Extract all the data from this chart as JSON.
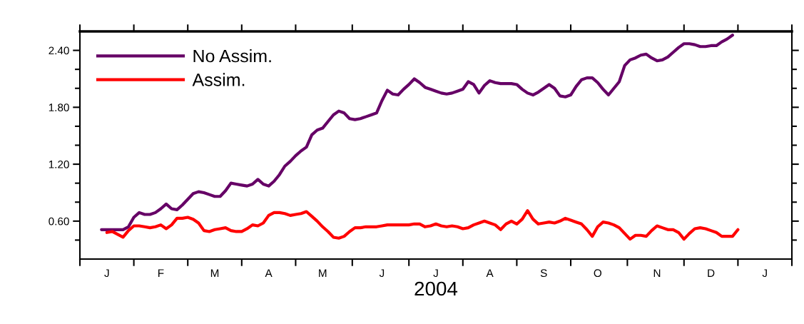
{
  "chart_data": {
    "type": "line",
    "xlabel": "2004",
    "categories": [
      null,
      null,
      null,
      null,
      null,
      "J",
      null,
      null,
      null,
      null,
      null,
      null,
      null,
      null,
      null,
      "F",
      null,
      null,
      null,
      null,
      null,
      null,
      null,
      null,
      null,
      "M",
      null,
      null,
      null,
      null,
      null,
      null,
      null,
      null,
      null,
      "A",
      null,
      null,
      null,
      null,
      null,
      null,
      null,
      null,
      null,
      "M",
      null,
      null,
      null,
      null,
      null,
      null,
      null,
      null,
      null,
      null,
      "J",
      null,
      null,
      null,
      null,
      null,
      null,
      null,
      null,
      null,
      "J",
      null,
      null,
      null,
      null,
      null,
      null,
      null,
      null,
      null,
      "A",
      null,
      null,
      null,
      null,
      null,
      null,
      null,
      null,
      null,
      "S",
      null,
      null,
      null,
      null,
      null,
      null,
      null,
      null,
      null,
      "O",
      null,
      null,
      null,
      null,
      null,
      null,
      null,
      null,
      null,
      null,
      "N",
      null,
      null,
      null,
      null,
      null,
      null,
      null,
      null,
      null,
      "D",
      null,
      null,
      null,
      null,
      null,
      null,
      null,
      null,
      null,
      "J",
      null,
      null,
      null,
      null,
      null
    ],
    "ylim": [
      0.2,
      2.6
    ],
    "yticks": [
      {
        "value": 0.4,
        "label": null
      },
      {
        "value": 0.6,
        "label": "0.60"
      },
      {
        "value": 0.8,
        "label": null
      },
      {
        "value": 1.0,
        "label": null
      },
      {
        "value": 1.2,
        "label": "1.20"
      },
      {
        "value": 1.4,
        "label": null
      },
      {
        "value": 1.6,
        "label": null
      },
      {
        "value": 1.8,
        "label": "1.80"
      },
      {
        "value": 2.0,
        "label": null
      },
      {
        "value": 2.2,
        "label": null
      },
      {
        "value": 2.4,
        "label": "2.40"
      }
    ],
    "grid": false,
    "legend": "top left",
    "marker": "none",
    "line_style": "solid",
    "series": [
      {
        "name": "No Assim.",
        "color": "#660066",
        "values": [
          null,
          null,
          null,
          null,
          0.51,
          0.51,
          0.51,
          0.51,
          0.51,
          0.54,
          0.64,
          0.69,
          0.67,
          0.67,
          0.69,
          0.73,
          0.78,
          0.73,
          0.72,
          0.77,
          0.83,
          0.89,
          0.91,
          0.9,
          0.88,
          0.86,
          0.86,
          0.92,
          1.0,
          0.99,
          0.98,
          0.97,
          0.99,
          1.04,
          0.99,
          0.97,
          1.02,
          1.09,
          1.18,
          1.23,
          1.29,
          1.34,
          1.38,
          1.51,
          1.56,
          1.58,
          1.65,
          1.72,
          1.76,
          1.74,
          1.68,
          1.67,
          1.68,
          1.7,
          1.72,
          1.74,
          1.87,
          1.98,
          1.94,
          1.93,
          1.99,
          2.04,
          2.1,
          2.06,
          2.01,
          1.99,
          1.97,
          1.95,
          1.94,
          1.95,
          1.97,
          1.99,
          2.07,
          2.04,
          1.95,
          2.03,
          2.08,
          2.06,
          2.05,
          2.05,
          2.05,
          2.04,
          1.99,
          1.95,
          1.93,
          1.96,
          2.0,
          2.04,
          2.0,
          1.92,
          1.91,
          1.93,
          2.02,
          2.09,
          2.11,
          2.11,
          2.06,
          1.99,
          1.93,
          2.0,
          2.07,
          2.24,
          2.3,
          2.32,
          2.35,
          2.36,
          2.32,
          2.29,
          2.3,
          2.33,
          2.38,
          2.43,
          2.47,
          2.47,
          2.46,
          2.44,
          2.44,
          2.45,
          2.45,
          2.49,
          2.52,
          2.56,
          null,
          null,
          null,
          null,
          null,
          null,
          null,
          null,
          null,
          null,
          null
        ]
      },
      {
        "name": "Assim.",
        "color": "#ff0000",
        "values": [
          null,
          null,
          null,
          null,
          null,
          0.48,
          0.49,
          0.46,
          0.43,
          0.5,
          0.55,
          0.55,
          0.54,
          0.53,
          0.54,
          0.56,
          0.52,
          0.56,
          0.63,
          0.63,
          0.64,
          0.62,
          0.58,
          0.5,
          0.49,
          0.51,
          0.52,
          0.53,
          0.5,
          0.49,
          0.49,
          0.52,
          0.56,
          0.55,
          0.58,
          0.66,
          0.69,
          0.69,
          0.68,
          0.66,
          0.67,
          0.68,
          0.7,
          0.65,
          0.6,
          0.54,
          0.49,
          0.43,
          0.42,
          0.44,
          0.49,
          0.53,
          0.53,
          0.54,
          0.54,
          0.54,
          0.55,
          0.56,
          0.56,
          0.56,
          0.56,
          0.56,
          0.57,
          0.57,
          0.54,
          0.55,
          0.57,
          0.55,
          0.54,
          0.55,
          0.54,
          0.52,
          0.53,
          0.56,
          0.58,
          0.6,
          0.58,
          0.56,
          0.51,
          0.57,
          0.6,
          0.57,
          0.62,
          0.71,
          0.62,
          0.57,
          0.58,
          0.59,
          0.58,
          0.6,
          0.63,
          0.61,
          0.59,
          0.57,
          0.51,
          0.44,
          0.54,
          0.59,
          0.58,
          0.56,
          0.53,
          0.47,
          0.41,
          0.45,
          0.45,
          0.44,
          0.5,
          0.55,
          0.53,
          0.51,
          0.51,
          0.48,
          0.41,
          0.47,
          0.52,
          0.53,
          0.52,
          0.5,
          0.48,
          0.44,
          0.44,
          0.44,
          0.51,
          null,
          null,
          null,
          null,
          null,
          null,
          null,
          null,
          null,
          null
        ]
      }
    ]
  }
}
